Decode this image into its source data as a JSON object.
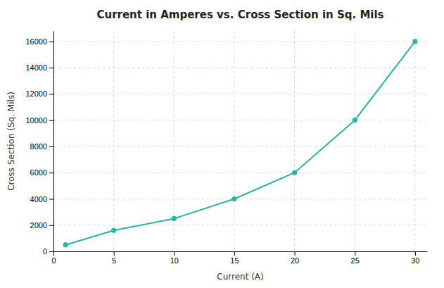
{
  "chart_data": {
    "type": "line",
    "title": "Current in Amperes vs. Cross Section in Sq. Mils",
    "x_label": "Current (A)",
    "y_label": "Cross Section (Sq. Mils)",
    "x": [
      1,
      5,
      10,
      15,
      20,
      25,
      30
    ],
    "values": [
      500,
      1600,
      2500,
      4000,
      6000,
      10000,
      16000
    ],
    "color": "#2ab5a0",
    "marker": "circle",
    "xlim": [
      0,
      31
    ],
    "ylim": [
      0,
      16800
    ],
    "xticks": [
      0,
      5,
      10,
      15,
      20,
      25,
      30
    ],
    "yticks": [
      0,
      2000,
      4000,
      6000,
      8000,
      10000,
      12000,
      14000,
      16000
    ],
    "grid": true
  }
}
